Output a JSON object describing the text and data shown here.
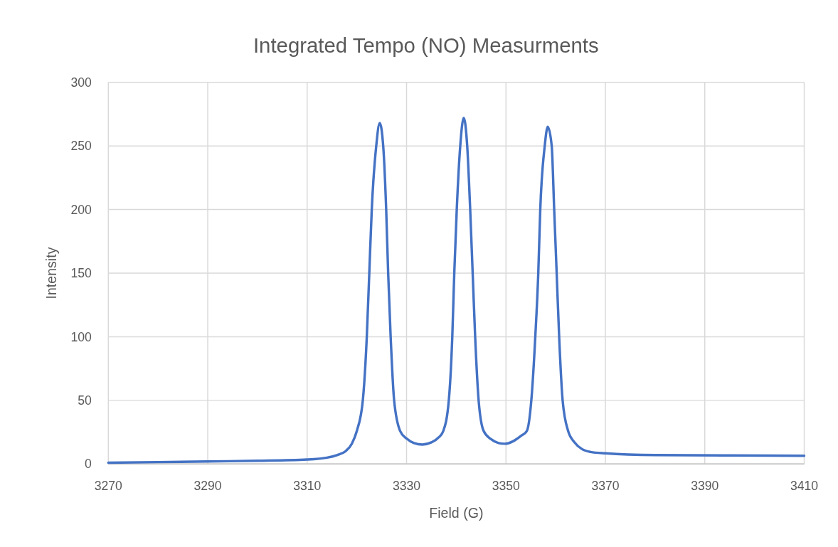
{
  "chart_data": {
    "type": "line",
    "title": "Integrated Tempo (NO) Measurments",
    "xlabel": "Field (G)",
    "ylabel": "Intensity",
    "xlim": [
      3270,
      3410
    ],
    "xticks": [
      3270,
      3290,
      3310,
      3330,
      3350,
      3370,
      3390,
      3410
    ],
    "ylim": [
      0,
      300
    ],
    "yticks": [
      0,
      50,
      100,
      150,
      200,
      250,
      300
    ],
    "grid": true,
    "marker": "none",
    "line_style": "solid",
    "series": [
      {
        "color": "#4472c4",
        "x": [
          3270,
          3290,
          3300,
          3310,
          3314,
          3316,
          3317.7,
          3319,
          3320,
          3321.2,
          3322,
          3322.5,
          3323,
          3323.9,
          3324.6,
          3325.3,
          3325.9,
          3326.3,
          3326.8,
          3327.5,
          3328.7,
          3330,
          3331.5,
          3333.2,
          3335,
          3336.5,
          3337.4,
          3338.5,
          3339.2,
          3339.6,
          3340.1,
          3340.8,
          3341.5,
          3342.2,
          3342.8,
          3343.3,
          3343.8,
          3344.5,
          3345.5,
          3347,
          3348.5,
          3349.8,
          3351.5,
          3353,
          3354.2,
          3355.1,
          3355.9,
          3356.5,
          3356.9,
          3357.8,
          3358.4,
          3359.2,
          3359.7,
          3360.2,
          3360.7,
          3361.4,
          3362.5,
          3363.8,
          3365.3,
          3367,
          3370,
          3380,
          3395,
          3410
        ],
        "values": [
          1,
          2,
          2.5,
          3.5,
          5,
          7,
          10,
          16,
          26,
          50,
          100,
          150,
          200,
          250,
          268,
          250,
          200,
          150,
          100,
          50,
          26,
          20,
          16.5,
          15.3,
          17,
          21,
          26,
          50,
          100,
          150,
          200,
          250,
          272,
          250,
          200,
          150,
          100,
          50,
          26,
          19.5,
          16.5,
          15.9,
          18,
          22,
          26,
          50,
          100,
          150,
          200,
          250,
          265,
          250,
          200,
          150,
          100,
          50,
          26,
          17,
          11.7,
          9.5,
          8.4,
          7,
          6.7,
          6.5
        ]
      }
    ]
  }
}
